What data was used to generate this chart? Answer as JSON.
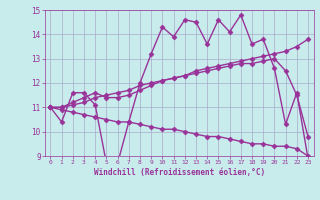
{
  "xlabel": "Windchill (Refroidissement éolien,°C)",
  "xlim": [
    -0.5,
    23.5
  ],
  "ylim": [
    9,
    15
  ],
  "yticks": [
    9,
    10,
    11,
    12,
    13,
    14,
    15
  ],
  "xticks": [
    0,
    1,
    2,
    3,
    4,
    5,
    6,
    7,
    8,
    9,
    10,
    11,
    12,
    13,
    14,
    15,
    16,
    17,
    18,
    19,
    20,
    21,
    22,
    23
  ],
  "background_color": "#c8ecec",
  "grid_color": "#aaaacc",
  "line_color": "#993399",
  "line_width": 1.0,
  "marker": "D",
  "marker_size": 2.5,
  "series": {
    "line1": [
      11.0,
      10.4,
      11.6,
      11.6,
      11.1,
      8.7,
      8.7,
      10.4,
      12.0,
      13.2,
      14.3,
      13.9,
      14.6,
      14.5,
      13.6,
      14.6,
      14.1,
      14.8,
      13.6,
      13.8,
      12.6,
      10.3,
      11.6,
      8.9
    ],
    "line2": [
      11.0,
      11.0,
      11.2,
      11.4,
      11.6,
      11.4,
      11.4,
      11.5,
      11.7,
      11.9,
      12.1,
      12.2,
      12.3,
      12.5,
      12.6,
      12.7,
      12.8,
      12.9,
      13.0,
      13.1,
      13.2,
      13.3,
      13.5,
      13.8
    ],
    "line3": [
      11.0,
      11.0,
      11.1,
      11.2,
      11.4,
      11.5,
      11.6,
      11.7,
      11.9,
      12.0,
      12.1,
      12.2,
      12.3,
      12.4,
      12.5,
      12.6,
      12.7,
      12.8,
      12.8,
      12.9,
      13.0,
      12.5,
      11.5,
      9.8
    ],
    "line4": [
      11.0,
      10.9,
      10.8,
      10.7,
      10.6,
      10.5,
      10.4,
      10.4,
      10.3,
      10.2,
      10.1,
      10.1,
      10.0,
      9.9,
      9.8,
      9.8,
      9.7,
      9.6,
      9.5,
      9.5,
      9.4,
      9.4,
      9.3,
      9.0
    ]
  }
}
